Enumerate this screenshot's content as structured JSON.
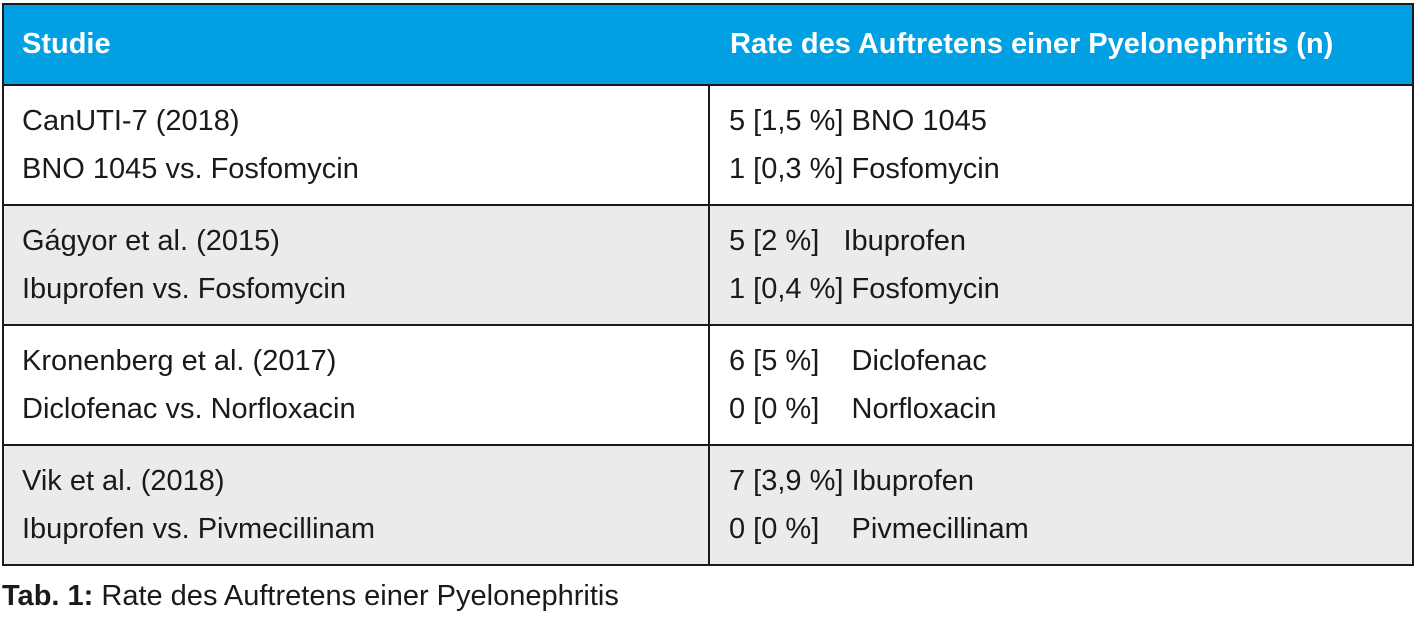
{
  "table": {
    "headers": [
      "Studie",
      "Rate des Auftretens einer Pyelonephritis (n)"
    ],
    "rows": [
      {
        "study": [
          "CanUTI-7 (2018)",
          "BNO 1045 vs. Fosfomycin"
        ],
        "rate": [
          "5 [1,5 %] BNO 1045",
          "1 [0,3 %] Fosfomycin"
        ]
      },
      {
        "study": [
          "Gágyor et al. (2015)",
          "Ibuprofen vs. Fosfomycin"
        ],
        "rate": [
          "5 [2 %]   Ibuprofen",
          "1 [0,4 %] Fosfomycin"
        ]
      },
      {
        "study": [
          "Kronenberg et al. (2017)",
          "Diclofenac vs. Norfloxacin"
        ],
        "rate": [
          "6 [5 %]    Diclofenac",
          "0 [0 %]    Norfloxacin"
        ]
      },
      {
        "study": [
          "Vik et al. (2018)",
          "Ibuprofen vs. Pivmecillinam"
        ],
        "rate": [
          "7 [3,9 %] Ibuprofen",
          "0 [0 %]    Pivmecillinam"
        ]
      }
    ]
  },
  "caption": {
    "label": "Tab. 1:",
    "text": " Rate des Auftretens einer Pyelonephritis"
  },
  "colors": {
    "header_bg": "#00a0e3",
    "alt_row_bg": "#ebebeb"
  }
}
